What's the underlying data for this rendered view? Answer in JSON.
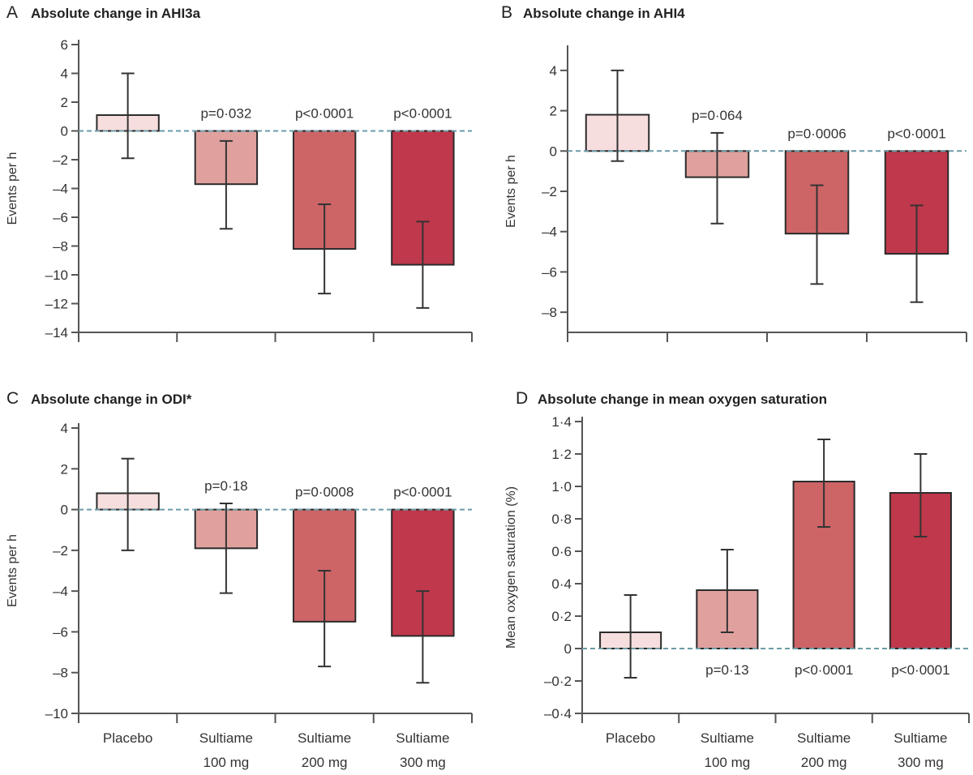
{
  "chart_data": [
    {
      "panel": "A",
      "type": "bar",
      "title": "Absolute change in AHI3a",
      "ylabel": "Events per h",
      "categories": [
        "Placebo",
        "Sultiame 100 mg",
        "Sultiame 200 mg",
        "Sultiame 300 mg"
      ],
      "values": [
        1.1,
        -3.7,
        -8.2,
        -9.3
      ],
      "error_low": [
        -1.9,
        -6.8,
        -11.3,
        -12.3
      ],
      "error_high": [
        4.0,
        -0.7,
        -5.1,
        -6.3
      ],
      "p_values": [
        "",
        "p=0·032",
        "p<0·0001",
        "p<0·0001"
      ],
      "ylim": [
        -14,
        6
      ],
      "yticks": [
        6,
        4,
        2,
        0,
        -2,
        -4,
        -6,
        -8,
        -10,
        -12,
        -14
      ],
      "ytick_labels": [
        "6",
        "4",
        "2",
        "0",
        "–2",
        "–4",
        "–6",
        "–8",
        "–10",
        "–12",
        "–14"
      ]
    },
    {
      "panel": "B",
      "type": "bar",
      "title": "Absolute change in AHI4",
      "ylabel": "Events per h",
      "categories": [
        "Placebo",
        "Sultiame 100 mg",
        "Sultiame 200 mg",
        "Sultiame 300 mg"
      ],
      "values": [
        1.8,
        -1.3,
        -4.1,
        -5.1
      ],
      "error_low": [
        -0.5,
        -3.6,
        -6.6,
        -7.5
      ],
      "error_high": [
        4.0,
        0.9,
        -1.7,
        -2.7
      ],
      "p_values": [
        "",
        "p=0·064",
        "p=0·0006",
        "p<0·0001"
      ],
      "ylim": [
        -9,
        5
      ],
      "yticks": [
        4,
        2,
        0,
        -2,
        -4,
        -6,
        -8
      ],
      "ytick_labels": [
        "4",
        "2",
        "0",
        "–2",
        "–4",
        "–6",
        "–8"
      ]
    },
    {
      "panel": "C",
      "type": "bar",
      "title": "Absolute change in ODI*",
      "ylabel": "Events per h",
      "categories": [
        "Placebo",
        "Sultiame 100 mg",
        "Sultiame 200 mg",
        "Sultiame 300 mg"
      ],
      "values": [
        0.8,
        -1.9,
        -5.5,
        -6.2
      ],
      "error_low": [
        -2.0,
        -4.1,
        -7.7,
        -8.5
      ],
      "error_high": [
        2.5,
        0.3,
        -3.0,
        -4.0
      ],
      "p_values": [
        "",
        "p=0·18",
        "p=0·0008",
        "p<0·0001"
      ],
      "ylim": [
        -10,
        4
      ],
      "yticks": [
        4,
        2,
        0,
        -2,
        -4,
        -6,
        -8,
        -10
      ],
      "ytick_labels": [
        "4",
        "2",
        "0",
        "–2",
        "–4",
        "–6",
        "–8",
        "–10"
      ]
    },
    {
      "panel": "D",
      "type": "bar",
      "title": "Absolute change in mean oxygen saturation",
      "ylabel": "Mean oxygen saturation (%)",
      "categories": [
        "Placebo",
        "Sultiame 100 mg",
        "Sultiame 200 mg",
        "Sultiame 300 mg"
      ],
      "values": [
        0.1,
        0.36,
        1.03,
        0.96
      ],
      "error_low": [
        -0.18,
        0.1,
        0.75,
        0.69
      ],
      "error_high": [
        0.33,
        0.61,
        1.29,
        1.2
      ],
      "p_values": [
        "",
        "p=0·13",
        "p<0·0001",
        "p<0·0001"
      ],
      "ylim": [
        -0.4,
        1.4
      ],
      "yticks": [
        1.4,
        1.2,
        1.0,
        0.8,
        0.6,
        0.4,
        0.2,
        0,
        -0.2,
        -0.4
      ],
      "ytick_labels": [
        "1·4",
        "1·2",
        "1·0",
        "0·8",
        "0·6",
        "0·4",
        "0·2",
        "0",
        "–0·2",
        "–0·4"
      ]
    }
  ],
  "category_labels": [
    {
      "line1": "Placebo",
      "line2": ""
    },
    {
      "line1": "Sultiame",
      "line2": "100 mg"
    },
    {
      "line1": "Sultiame",
      "line2": "200 mg"
    },
    {
      "line1": "Sultiame",
      "line2": "300 mg"
    }
  ],
  "colors": {
    "bars": [
      "#f7dede",
      "#e0a19e",
      "#cd6466",
      "#c0384b"
    ],
    "bar_stroke": "#2b2b2b",
    "zero_line": "#6b9ca8",
    "axis": "#555555"
  }
}
